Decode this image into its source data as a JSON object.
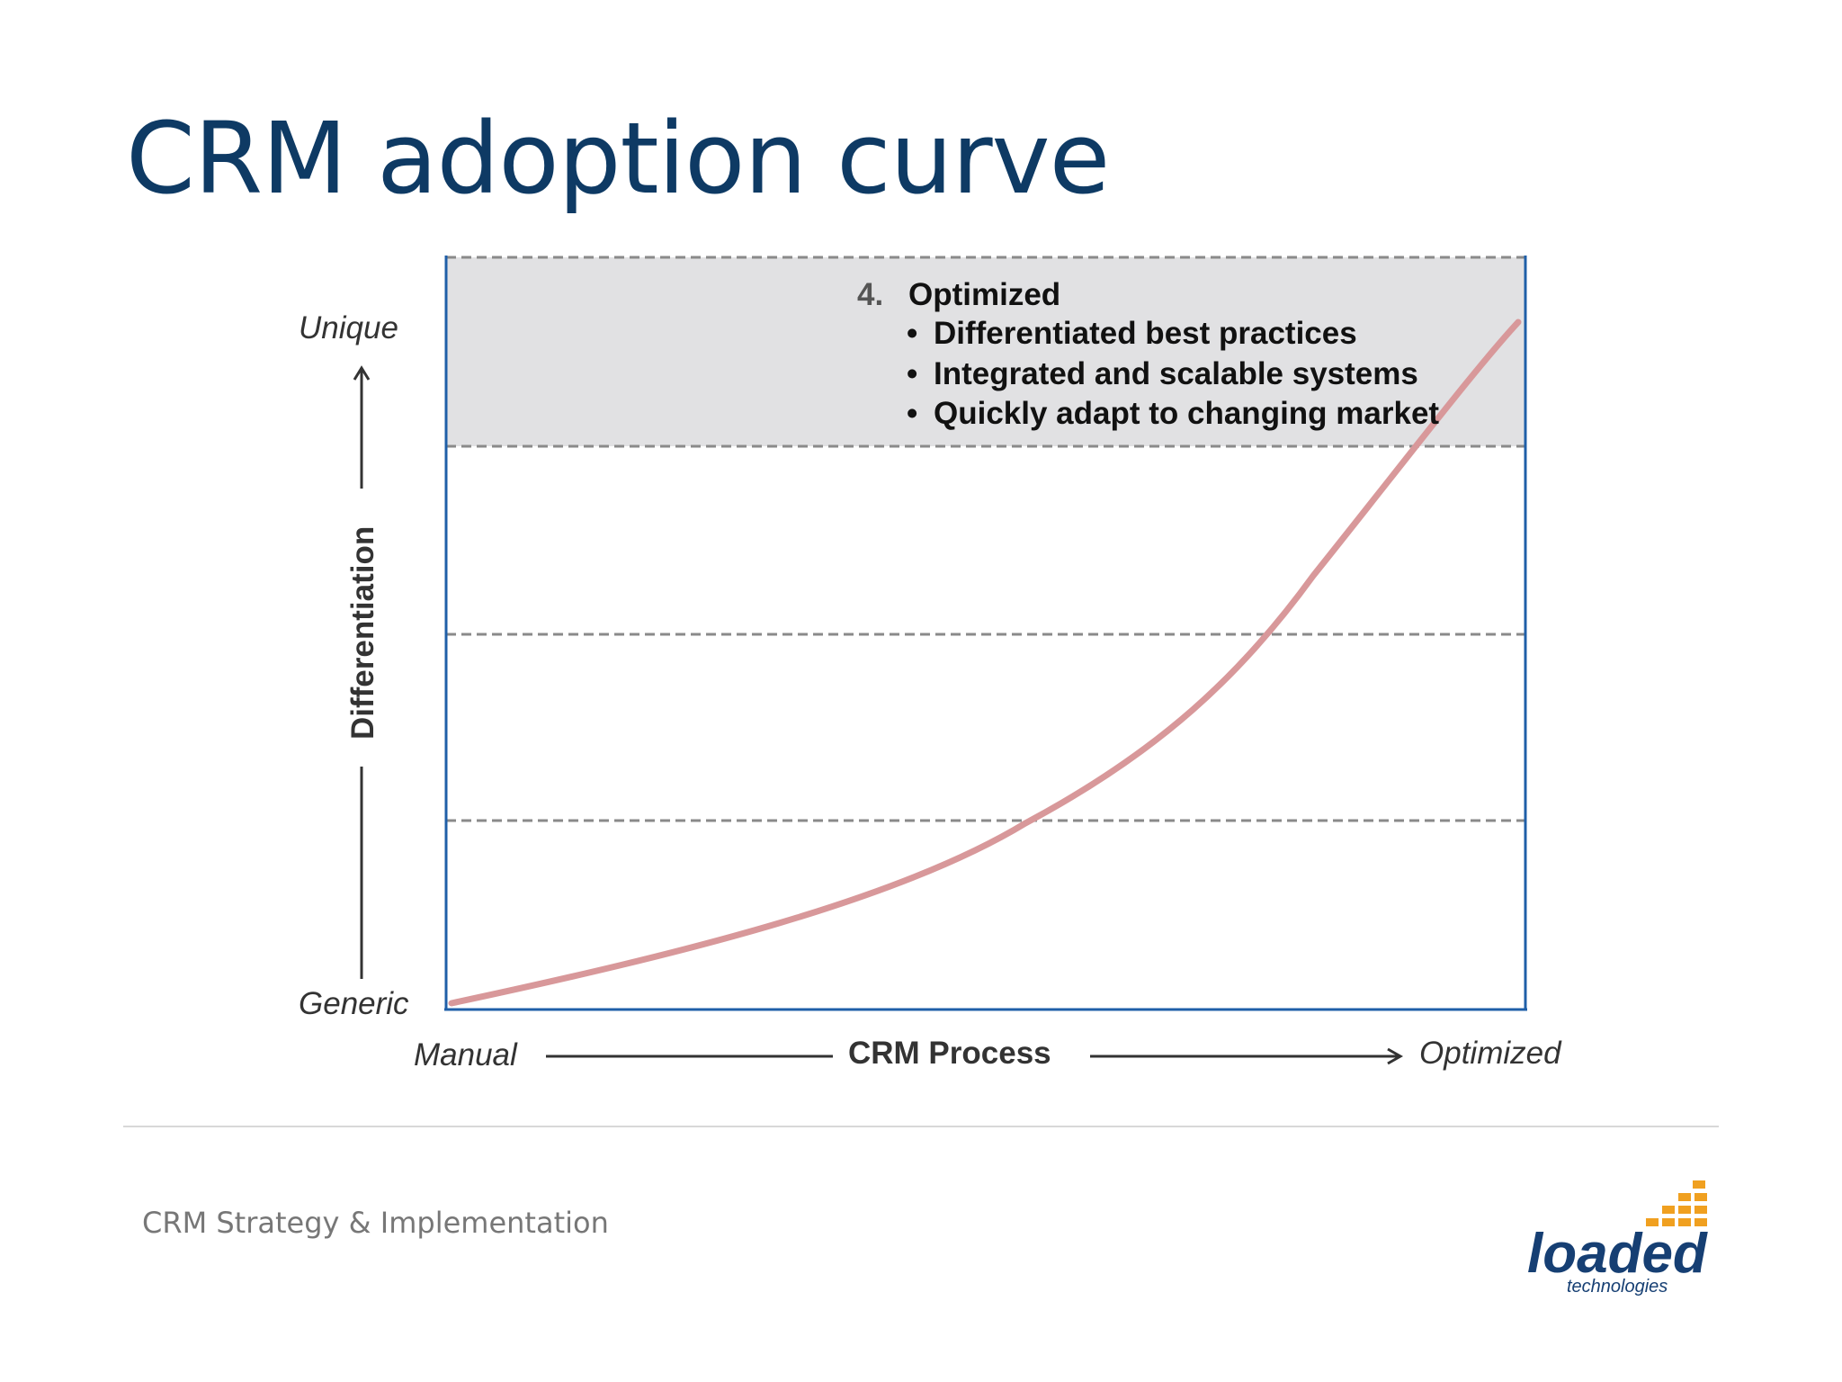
{
  "title": "CRM adoption curve",
  "diagram": {
    "y_axis": {
      "top_label": "Unique",
      "bottom_label": "Generic",
      "title": "Differentiation"
    },
    "x_axis": {
      "left_label": "Manual",
      "title": "CRM Process",
      "right_label": "Optimized"
    },
    "stage": {
      "number": "4.",
      "name": "Optimized",
      "bullets": [
        "Differentiated best practices",
        "Integrated and scalable systems",
        "Quickly adapt to changing market"
      ]
    },
    "colors": {
      "frame": "#1f5fa8",
      "curve": "#d8989a",
      "band": "#e1e1e3",
      "title": "#0e3a64"
    }
  },
  "footer": {
    "text": "CRM Strategy & Implementation"
  },
  "logo": {
    "wordmark": "loaded",
    "tagline": "technologies"
  }
}
